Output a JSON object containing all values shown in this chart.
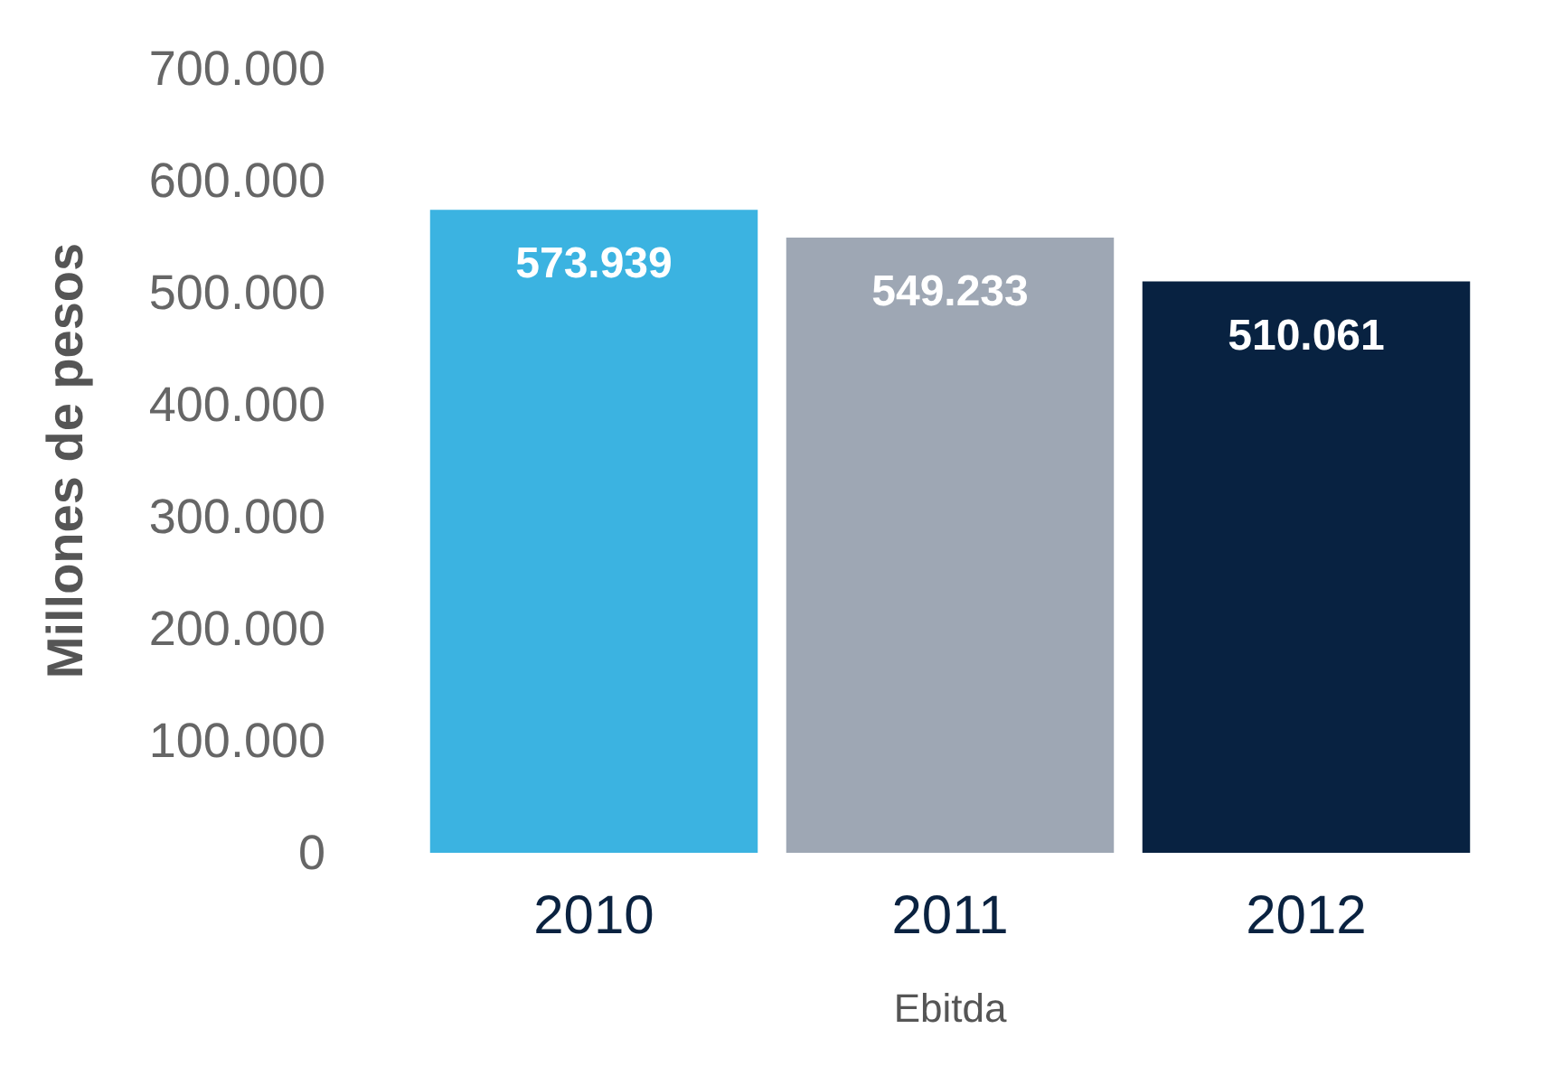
{
  "chart_data": {
    "type": "bar",
    "categories": [
      "2010",
      "2011",
      "2012"
    ],
    "values": [
      573939,
      549233,
      510061
    ],
    "value_labels": [
      "573.939",
      "549.233",
      "510.061"
    ],
    "colors": [
      "#3bb3e1",
      "#9ea7b4",
      "#082241"
    ],
    "ylabel": "Millones de pesos",
    "xlabel": "Ebitda",
    "ylim": [
      0,
      700000
    ],
    "yticks": [
      0,
      {
        "value": 100000,
        "label": "100.000"
      },
      {
        "value": 200000,
        "label": "200.000"
      },
      {
        "value": 300000,
        "label": "300.000"
      },
      {
        "value": 400000,
        "label": "400.000"
      },
      {
        "value": 500000,
        "label": "500.000"
      },
      {
        "value": 600000,
        "label": "600.000"
      },
      {
        "value": 700000,
        "label": "700.000"
      }
    ],
    "grid": false
  }
}
